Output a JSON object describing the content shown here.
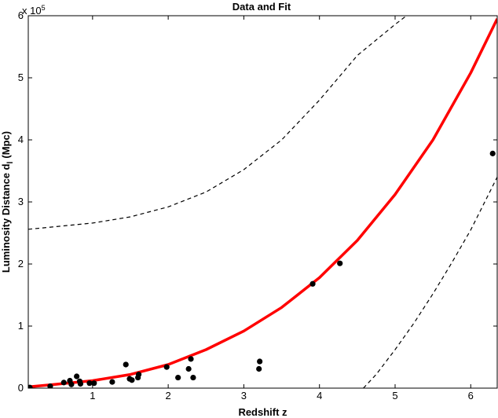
{
  "chart_data": {
    "type": "scatter",
    "title": "Data and Fit",
    "xlabel": "Redshift z",
    "ylabel": "Luminosity Distance d",
    "ylabel_subscript": "l",
    "ylabel_unit": "(Mpc)",
    "exponent_label": "x 10",
    "exponent_power": "5",
    "xlim": [
      0.15,
      6.35
    ],
    "ylim": [
      0,
      6
    ],
    "xticks": [
      1,
      2,
      3,
      4,
      5,
      6
    ],
    "yticks": [
      0,
      1,
      2,
      3,
      4,
      5,
      6
    ],
    "grid": false,
    "legend": "none",
    "colors": {
      "fit": "#ff0000",
      "bounds": "#000000",
      "points": "#000000"
    },
    "points": [
      {
        "x": 0.17,
        "y": 0.01
      },
      {
        "x": 0.44,
        "y": 0.03
      },
      {
        "x": 0.62,
        "y": 0.09
      },
      {
        "x": 0.7,
        "y": 0.12
      },
      {
        "x": 0.72,
        "y": 0.06
      },
      {
        "x": 0.79,
        "y": 0.19
      },
      {
        "x": 0.83,
        "y": 0.11
      },
      {
        "x": 0.84,
        "y": 0.07
      },
      {
        "x": 0.96,
        "y": 0.08
      },
      {
        "x": 1.02,
        "y": 0.08
      },
      {
        "x": 1.26,
        "y": 0.1
      },
      {
        "x": 1.44,
        "y": 0.38
      },
      {
        "x": 1.49,
        "y": 0.15
      },
      {
        "x": 1.52,
        "y": 0.13
      },
      {
        "x": 1.6,
        "y": 0.17
      },
      {
        "x": 1.61,
        "y": 0.22
      },
      {
        "x": 1.98,
        "y": 0.34
      },
      {
        "x": 2.13,
        "y": 0.17
      },
      {
        "x": 2.27,
        "y": 0.31
      },
      {
        "x": 2.3,
        "y": 0.47
      },
      {
        "x": 2.33,
        "y": 0.17
      },
      {
        "x": 3.2,
        "y": 0.31
      },
      {
        "x": 3.21,
        "y": 0.43
      },
      {
        "x": 3.91,
        "y": 1.68
      },
      {
        "x": 4.27,
        "y": 2.01
      },
      {
        "x": 6.29,
        "y": 3.78
      }
    ],
    "fit": {
      "name": "fit",
      "style": "solid",
      "x": [
        0.15,
        0.5,
        1.0,
        1.5,
        2.0,
        2.5,
        3.0,
        3.5,
        4.0,
        4.5,
        5.0,
        5.5,
        6.0,
        6.35
      ],
      "y": [
        0.02,
        0.06,
        0.12,
        0.22,
        0.38,
        0.62,
        0.92,
        1.3,
        1.78,
        2.38,
        3.12,
        4.0,
        5.08,
        5.95
      ]
    },
    "upper_bound": {
      "name": "upper",
      "style": "dashed",
      "x": [
        0.15,
        0.5,
        1.0,
        1.5,
        2.0,
        2.5,
        3.0,
        3.5,
        4.0,
        4.5,
        5.0,
        5.15
      ],
      "y": [
        2.56,
        2.6,
        2.66,
        2.76,
        2.92,
        3.16,
        3.52,
        4.0,
        4.64,
        5.36,
        5.86,
        6.0
      ]
    },
    "lower_bound": {
      "name": "lower",
      "style": "dashed",
      "x": [
        4.58,
        4.75,
        5.0,
        5.25,
        5.5,
        5.75,
        6.0,
        6.35
      ],
      "y": [
        0.0,
        0.22,
        0.62,
        1.05,
        1.52,
        2.02,
        2.55,
        3.4
      ]
    }
  }
}
